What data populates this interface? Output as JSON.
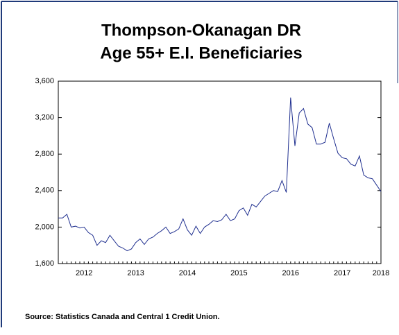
{
  "chart_data": {
    "type": "line",
    "title": "Thompson-Okanagan DR",
    "subtitle": "Age 55+ E.I. Beneficiaries",
    "source": "Source: Statistics Canada and Central 1 Credit Union.",
    "categories": [
      null,
      null,
      null,
      null,
      null,
      null,
      "2012",
      null,
      null,
      null,
      null,
      null,
      null,
      null,
      null,
      null,
      null,
      null,
      "2013",
      null,
      null,
      null,
      null,
      null,
      null,
      null,
      null,
      null,
      null,
      null,
      "2014",
      null,
      null,
      null,
      null,
      null,
      null,
      null,
      null,
      null,
      null,
      null,
      "2015",
      null,
      null,
      null,
      null,
      null,
      null,
      null,
      null,
      null,
      null,
      null,
      "2016",
      null,
      null,
      null,
      null,
      null,
      null,
      null,
      null,
      null,
      null,
      null,
      "2017",
      null,
      null,
      null,
      null,
      null,
      null,
      null,
      null,
      "2018"
    ],
    "series": [
      {
        "name": "Age 55+ E.I. Beneficiaries",
        "color": "#1f2f8f",
        "values": [
          2100,
          2100,
          2140,
          2000,
          2010,
          1990,
          2000,
          1940,
          1910,
          1800,
          1850,
          1830,
          1910,
          1850,
          1790,
          1770,
          1740,
          1760,
          1830,
          1870,
          1810,
          1870,
          1890,
          1930,
          1960,
          2000,
          1930,
          1950,
          1980,
          2090,
          1970,
          1910,
          2010,
          1930,
          2000,
          2030,
          2070,
          2060,
          2080,
          2140,
          2070,
          2090,
          2180,
          2210,
          2130,
          2250,
          2220,
          2280,
          2340,
          2370,
          2400,
          2390,
          2510,
          2380,
          3420,
          2890,
          3250,
          3300,
          3130,
          3090,
          2910,
          2910,
          2930,
          3140,
          2970,
          2810,
          2760,
          2750,
          2690,
          2670,
          2780,
          2570,
          2540,
          2530,
          2460,
          2390
        ]
      }
    ],
    "ylim": [
      1600,
      3600
    ],
    "yticks": [
      {
        "value": 1600,
        "label": "1,600"
      },
      {
        "value": 2000,
        "label": "2,000"
      },
      {
        "value": 2400,
        "label": "2,400"
      },
      {
        "value": 2800,
        "label": "2,800"
      },
      {
        "value": 3200,
        "label": "3,200"
      },
      {
        "value": 3600,
        "label": "3,600"
      }
    ],
    "grid": false
  }
}
